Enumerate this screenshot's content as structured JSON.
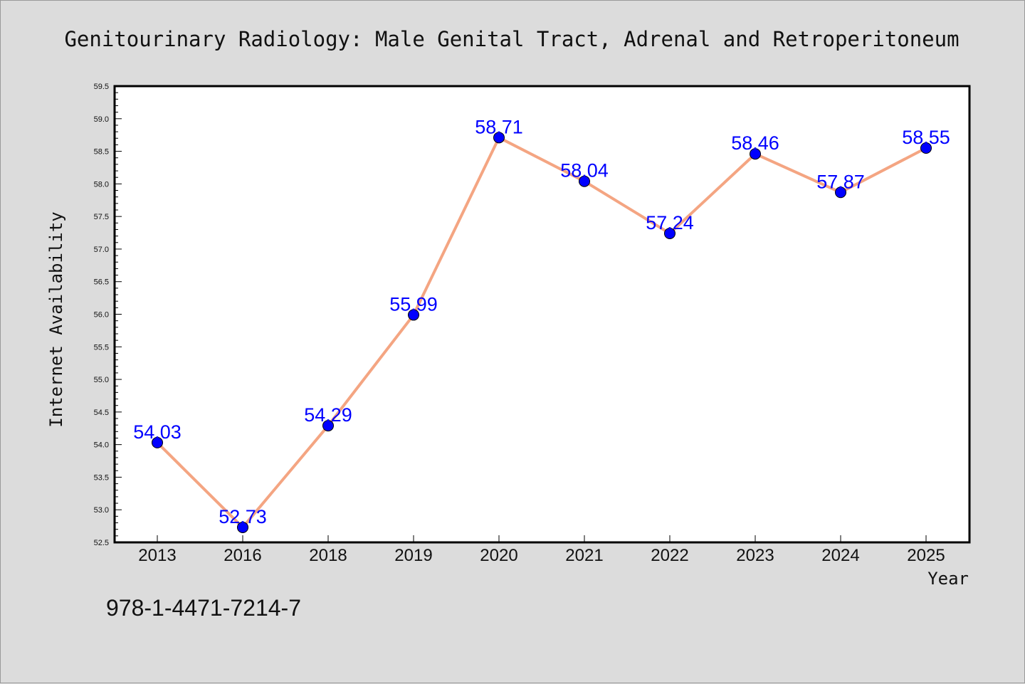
{
  "chart_data": {
    "type": "line",
    "title": "Genitourinary Radiology: Male Genital Tract, Adrenal and Retroperitoneum",
    "xlabel": "Year",
    "ylabel": "Internet Availability",
    "categories": [
      "2013",
      "2016",
      "2018",
      "2019",
      "2020",
      "2021",
      "2022",
      "2023",
      "2024",
      "2025"
    ],
    "values": [
      54.03,
      52.73,
      54.29,
      55.99,
      58.71,
      58.04,
      57.24,
      58.46,
      57.87,
      58.55
    ],
    "value_labels": [
      "54.03",
      "52.73",
      "54.29",
      "55.99",
      "58.71",
      "58.04",
      "57.24",
      "58.46",
      "57.87",
      "58.55"
    ],
    "ylim": [
      52.5,
      59.5
    ],
    "ytick_labels": [
      "52.5",
      "53.0",
      "53.5",
      "54.0",
      "54.5",
      "55.0",
      "55.5",
      "56.0",
      "56.5",
      "57.0",
      "57.5",
      "58.0",
      "58.5",
      "59.0",
      "59.5"
    ],
    "grid": false,
    "line_color": "#f4a582",
    "marker_color": "#0000ff",
    "label_color": "#0000ff"
  },
  "annotation": "978-1-4471-7214-7"
}
